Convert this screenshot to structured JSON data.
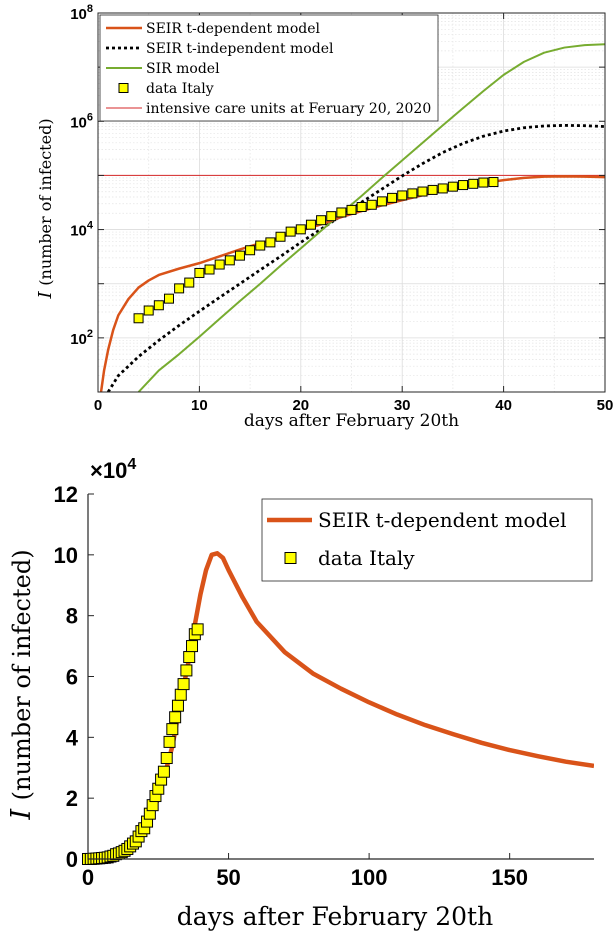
{
  "chart_data": [
    {
      "type": "line",
      "xlabel": "days after February 20th",
      "ylabel_symbol": "I",
      "ylabel": "(number of infected)",
      "xlim": [
        0,
        50
      ],
      "ylim": [
        10,
        100000000
      ],
      "yscale": "log",
      "xticks": [
        0,
        10,
        20,
        30,
        40,
        50
      ],
      "xtick_labels": [
        "0",
        "10",
        "20",
        "30",
        "40",
        "50"
      ],
      "yticks": [
        100,
        10000,
        1000000,
        100000000
      ],
      "ytick_labels": [
        {
          "base": "10",
          "exp": "2"
        },
        {
          "base": "10",
          "exp": "4"
        },
        {
          "base": "10",
          "exp": "6"
        },
        {
          "base": "10",
          "exp": "8"
        }
      ],
      "grid": true,
      "legend_position": "top-left",
      "series": [
        {
          "name": "SEIR t-dependent model",
          "color": "#d95319",
          "style": "solid",
          "x": [
            0.3,
            0.6,
            1,
            1.5,
            2,
            3,
            4,
            5,
            6,
            8,
            10,
            12,
            14,
            16,
            18,
            20,
            22,
            24,
            26,
            28,
            30,
            32,
            34,
            36,
            38,
            40,
            42,
            44,
            46,
            48,
            50
          ],
          "y": [
            10,
            25,
            60,
            140,
            260,
            520,
            850,
            1150,
            1450,
            1900,
            2400,
            3200,
            4300,
            5600,
            7200,
            9500,
            12500,
            17000,
            22000,
            28000,
            35000,
            43000,
            52000,
            62000,
            72000,
            82000,
            90000,
            95000,
            96000,
            95000,
            93000
          ]
        },
        {
          "name": "SEIR t-independent model",
          "color": "#000000",
          "style": "dotted",
          "x": [
            1,
            2,
            4,
            6,
            8,
            10,
            12,
            14,
            16,
            18,
            20,
            22,
            24,
            26,
            28,
            30,
            32,
            34,
            36,
            38,
            40,
            42,
            44,
            46,
            48,
            50
          ],
          "y": [
            10,
            20,
            45,
            90,
            170,
            310,
            560,
            1000,
            1800,
            3200,
            5800,
            10200,
            18000,
            32000,
            56000,
            98000,
            165000,
            265000,
            390000,
            530000,
            660000,
            760000,
            820000,
            840000,
            830000,
            800000
          ]
        },
        {
          "name": "SIR model",
          "color": "#77ac30",
          "style": "solid",
          "x": [
            4,
            6,
            8,
            10,
            12,
            14,
            16,
            18,
            20,
            22,
            24,
            26,
            28,
            30,
            32,
            34,
            36,
            38,
            40,
            42,
            44,
            46,
            48,
            50
          ],
          "y": [
            10,
            25,
            50,
            105,
            225,
            480,
            1000,
            2150,
            4500,
            9500,
            20000,
            42000,
            90000,
            190000,
            400000,
            840000,
            1750000,
            3600000,
            7200000,
            12500000,
            18500000,
            23000000,
            25500000,
            26500000
          ]
        },
        {
          "name": "intensive care units at Feruary 20, 2020",
          "color": "#d62728",
          "style": "solid",
          "x": [
            0,
            50
          ],
          "y": [
            100000,
            100000
          ]
        },
        {
          "name": "data Italy",
          "color": "#ffff00",
          "style": "marker",
          "x": [
            4,
            5,
            6,
            7,
            8,
            9,
            10,
            11,
            12,
            13,
            14,
            15,
            16,
            17,
            18,
            19,
            20,
            21,
            22,
            23,
            24,
            25,
            26,
            27,
            28,
            29,
            30,
            31,
            32,
            33,
            34,
            35,
            36,
            37,
            38,
            39
          ],
          "y": [
            230,
            320,
            400,
            530,
            820,
            1050,
            1580,
            1830,
            2260,
            2700,
            3300,
            4150,
            5070,
            5800,
            7370,
            9170,
            10100,
            12300,
            14900,
            17700,
            20700,
            23100,
            26100,
            28700,
            33200,
            38500,
            42700,
            46600,
            50400,
            54000,
            57500,
            62000,
            66400,
            70000,
            73900,
            75500
          ]
        }
      ]
    },
    {
      "type": "line",
      "xlabel": "days after February 20th",
      "ylabel_symbol": "I",
      "ylabel": "(number of infected)",
      "xlim": [
        0,
        180
      ],
      "ylim": [
        0,
        120000
      ],
      "yscale": "linear",
      "y_multiplier": {
        "base": "×10",
        "exp": "4"
      },
      "xticks": [
        0,
        50,
        100,
        150
      ],
      "xtick_labels": [
        "0",
        "50",
        "100",
        "150"
      ],
      "yticks": [
        0,
        20000,
        40000,
        60000,
        80000,
        100000,
        120000
      ],
      "ytick_labels": [
        "0",
        "2",
        "4",
        "6",
        "8",
        "10",
        "12"
      ],
      "grid": false,
      "legend_position": "top-right",
      "series": [
        {
          "name": "SEIR t-dependent model",
          "color": "#d95319",
          "style": "solid",
          "x": [
            0,
            5,
            10,
            15,
            20,
            25,
            30,
            33,
            36,
            38,
            40,
            42,
            44,
            46,
            48,
            50,
            55,
            60,
            70,
            80,
            90,
            100,
            110,
            120,
            130,
            140,
            150,
            160,
            170,
            180
          ],
          "y": [
            0,
            1200,
            2500,
            5000,
            9500,
            20000,
            37000,
            52000,
            66000,
            77000,
            87000,
            95000,
            100000,
            100500,
            99000,
            95000,
            86000,
            78000,
            68000,
            61000,
            56000,
            51500,
            47500,
            44000,
            41000,
            38200,
            35800,
            33800,
            32000,
            30600
          ]
        },
        {
          "name": "data Italy",
          "color": "#ffff00",
          "style": "marker",
          "x": [
            0,
            1,
            2,
            3,
            4,
            5,
            6,
            7,
            8,
            9,
            10,
            11,
            12,
            13,
            14,
            15,
            16,
            17,
            18,
            19,
            20,
            21,
            22,
            23,
            24,
            25,
            26,
            27,
            28,
            29,
            30,
            31,
            32,
            33,
            34,
            35,
            36,
            37,
            38,
            39
          ],
          "y": [
            3,
            16,
            79,
            150,
            230,
            320,
            400,
            530,
            820,
            1050,
            1580,
            1830,
            2260,
            2700,
            3300,
            4150,
            5070,
            5800,
            7370,
            9170,
            10100,
            12300,
            14900,
            17700,
            20700,
            23100,
            26100,
            28700,
            33200,
            38500,
            42700,
            46600,
            50400,
            54000,
            57500,
            62000,
            66400,
            70000,
            73900,
            75500
          ]
        }
      ]
    }
  ]
}
